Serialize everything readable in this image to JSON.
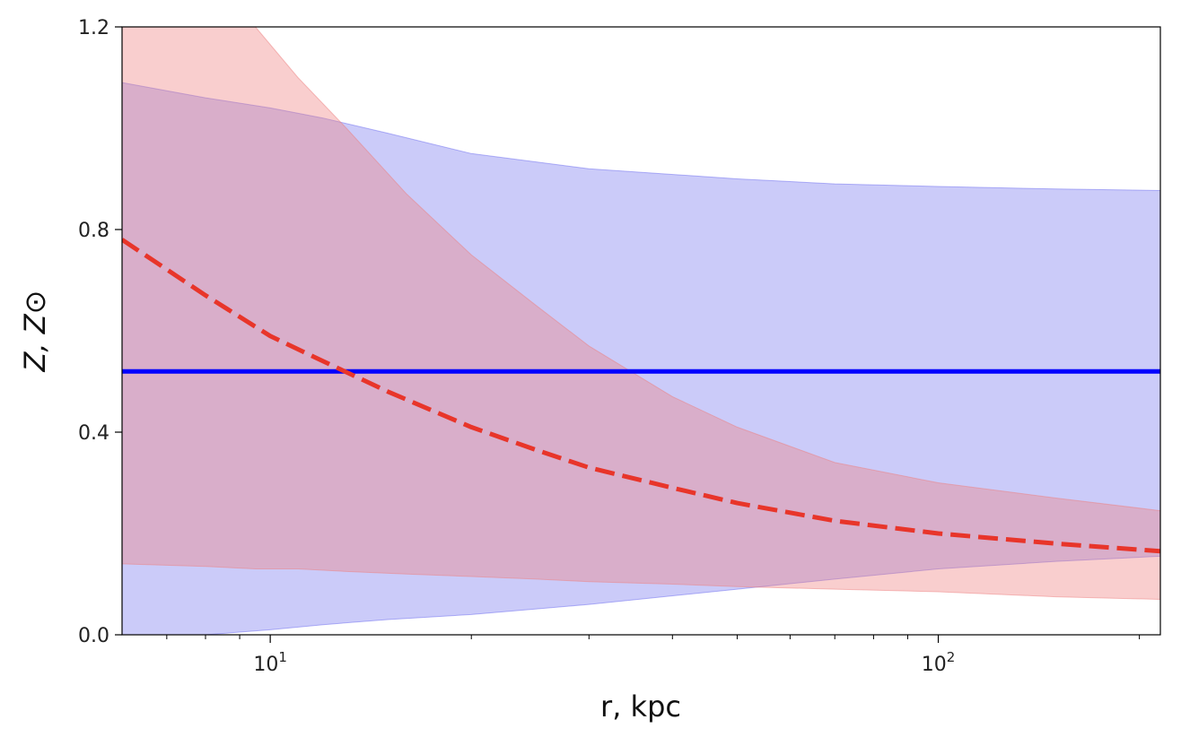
{
  "chart_data": {
    "type": "line",
    "xscale": "log",
    "xlim": [
      6,
      215
    ],
    "ylim": [
      0.0,
      1.2
    ],
    "xlabel": "r, kpc",
    "ylabel": "Z, Z⊙",
    "x_ticks": [
      {
        "value": 10,
        "base": "10",
        "exp": "1"
      },
      {
        "value": 100,
        "base": "10",
        "exp": "2"
      }
    ],
    "y_ticks": [
      {
        "value": 0.0,
        "label": "0.0"
      },
      {
        "value": 0.4,
        "label": "0.4"
      },
      {
        "value": 0.8,
        "label": "0.8"
      },
      {
        "value": 1.2,
        "label": "1.2"
      }
    ],
    "grid": false,
    "legend": "none",
    "series": [
      {
        "style": "solid",
        "color": "#0000ff",
        "x": [
          6,
          215
        ],
        "y": [
          0.52,
          0.52
        ]
      },
      {
        "style": "dashed",
        "color": "#e8352a",
        "x": [
          6,
          8,
          10,
          12,
          15,
          20,
          25,
          30,
          40,
          50,
          70,
          100,
          150,
          215
        ],
        "y": [
          0.78,
          0.67,
          0.59,
          0.54,
          0.48,
          0.41,
          0.365,
          0.33,
          0.29,
          0.26,
          0.225,
          0.2,
          0.18,
          0.165
        ]
      }
    ],
    "bands": [
      {
        "color": "#6b6bef",
        "opacity": 0.35,
        "x": [
          6,
          8,
          10,
          12,
          15,
          20,
          30,
          50,
          70,
          100,
          150,
          215
        ],
        "lower": [
          0.0,
          0.0,
          0.01,
          0.02,
          0.03,
          0.04,
          0.06,
          0.09,
          0.11,
          0.13,
          0.145,
          0.155
        ],
        "upper": [
          1.09,
          1.06,
          1.04,
          1.02,
          0.99,
          0.95,
          0.92,
          0.9,
          0.89,
          0.885,
          0.88,
          0.877
        ]
      },
      {
        "color": "#ee7f7f",
        "opacity": 0.38,
        "x": [
          6,
          8,
          9.5,
          11,
          13,
          16,
          20,
          25,
          30,
          40,
          50,
          70,
          100,
          150,
          215
        ],
        "lower": [
          0.14,
          0.135,
          0.13,
          0.13,
          0.125,
          0.12,
          0.115,
          0.11,
          0.105,
          0.1,
          0.095,
          0.09,
          0.085,
          0.075,
          0.07
        ],
        "upper": [
          1.42,
          1.3,
          1.2,
          1.1,
          1.0,
          0.87,
          0.75,
          0.65,
          0.57,
          0.47,
          0.41,
          0.34,
          0.3,
          0.27,
          0.245
        ]
      }
    ]
  }
}
